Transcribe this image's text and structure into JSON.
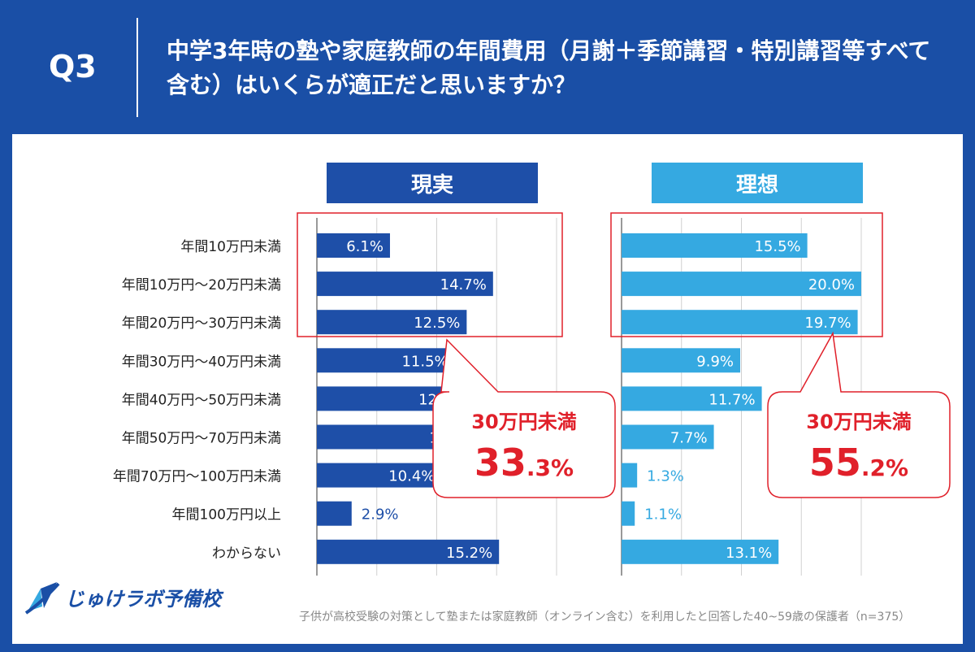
{
  "header": {
    "q": "Q3",
    "title": "中学3年時の塾や家庭教師の年間費用（月謝＋季節講習・特別講習等すべて含む）はいくらが適正だと思いますか？"
  },
  "footer": {
    "logo": "じゅけラボ予備校",
    "note": "子供が高校受験の対策として塾または家庭教師（オンライン含む）を利用したと回答した40~59歳の保護者（n=375）"
  },
  "chart_data": {
    "type": "bar",
    "orientation": "horizontal",
    "categories": [
      "年間10万円未満",
      "年間10万円～20万円未満",
      "年間20万円～30万円未満",
      "年間30万円～40万円未満",
      "年間40万円～50万円未満",
      "年間50万円～70万円未満",
      "年間70万円～100万円未満",
      "年間100万円以上",
      "わからない"
    ],
    "series": [
      {
        "name": "現実",
        "color": "#1e4fa8",
        "values": [
          6.1,
          14.7,
          12.5,
          11.5,
          12.9,
          13.8,
          10.4,
          2.9,
          15.2
        ]
      },
      {
        "name": "理想",
        "color": "#35a9e1",
        "values": [
          15.5,
          20.0,
          19.7,
          9.9,
          11.7,
          7.7,
          1.3,
          1.1,
          13.1
        ]
      }
    ],
    "xlim": [
      0,
      20
    ],
    "grid": true,
    "callouts": [
      {
        "label": "30万円未満",
        "value_main": "33.3",
        "value_sub": ".3%"
      },
      {
        "label": "30万円未満",
        "value_main": "55.2",
        "value_sub": ".2%"
      }
    ],
    "callout_display": [
      [
        "33",
        ".3%"
      ],
      [
        "55",
        ".2%"
      ]
    ]
  }
}
